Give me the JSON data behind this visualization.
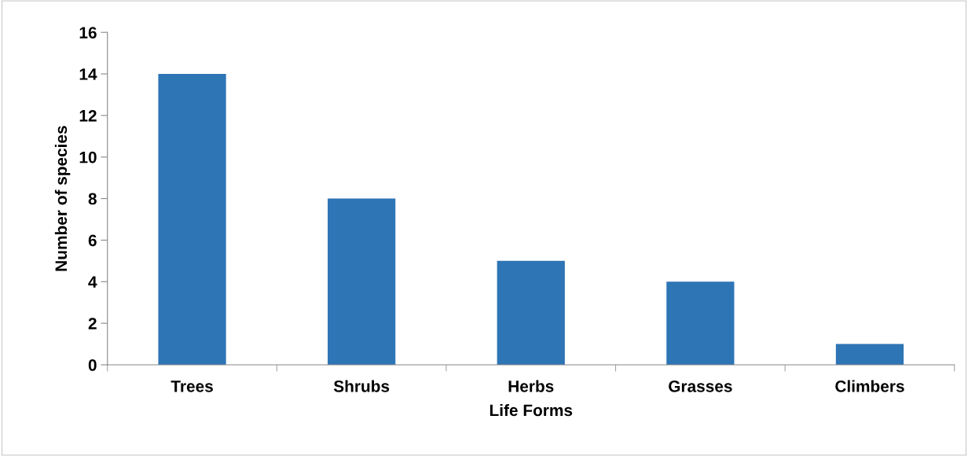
{
  "chart_data": {
    "type": "bar",
    "xlabel": "Life Forms",
    "ylabel": "Number of species",
    "categories": [
      "Trees",
      "Shrubs",
      "Herbs",
      "Grasses",
      "Climbers"
    ],
    "values": [
      14,
      8,
      5,
      4,
      1
    ],
    "color": "#2e75b6",
    "ylim": [
      0,
      16
    ],
    "yticks": [
      0,
      2,
      4,
      6,
      8,
      10,
      12,
      14,
      16
    ],
    "grid": false,
    "legend": false
  }
}
